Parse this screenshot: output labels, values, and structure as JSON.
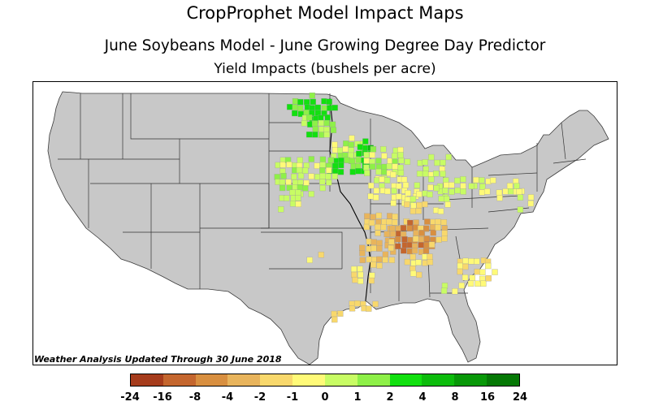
{
  "header": {
    "title": "CropProphet Model Impact Maps",
    "subtitle": "June Soybeans Model - June Growing Degree Day Predictor",
    "metric": "Yield Impacts (bushels per acre)"
  },
  "map": {
    "footnote": "Weather Analysis Updated Through 30 June 2018",
    "land_color": "#c8c8c8",
    "border_color": "#3a3a3a"
  },
  "legend": {
    "ticks": [
      "-24",
      "-16",
      "-8",
      "-4",
      "-2",
      "-1",
      "0",
      "1",
      "2",
      "4",
      "8",
      "16",
      "24"
    ],
    "colors": [
      "#a63c1c",
      "#c4662e",
      "#d88f40",
      "#e8b45c",
      "#f8d86c",
      "#fffa78",
      "#c8fc64",
      "#8ef048",
      "#12e010",
      "#0cbc0c",
      "#089808",
      "#057805"
    ]
  }
}
